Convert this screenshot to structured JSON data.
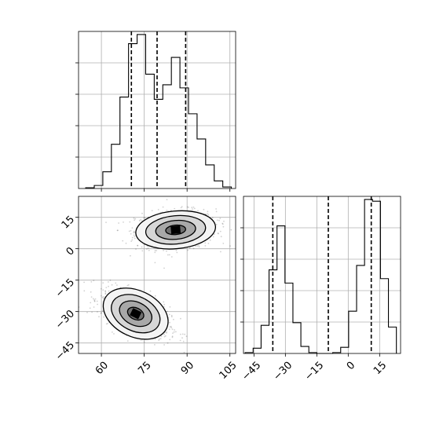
{
  "chart_data": [
    {
      "id": "hist_x",
      "type": "histogram",
      "panel": "top-left",
      "xlim": [
        52,
        107
      ],
      "bin_edges": [
        54.5,
        57.5,
        60.5,
        63.5,
        66.5,
        69.5,
        72.5,
        75.5,
        78.5,
        81.5,
        84.5,
        87.5,
        90.5,
        93.5,
        96.5,
        99.5,
        102.5,
        105.5
      ],
      "counts": [
        1,
        4,
        22,
        58,
        120,
        190,
        202,
        150,
        117,
        136,
        172,
        132,
        98,
        65,
        31,
        10,
        2
      ],
      "quantile_lines": [
        70.5,
        79.5,
        89.5
      ],
      "grid": true
    },
    {
      "id": "hist_y",
      "type": "histogram",
      "panel": "bottom-right",
      "xlim": [
        -50,
        25
      ],
      "bin_edges": [
        -49.2,
        -45.4,
        -41.6,
        -37.8,
        -34.0,
        -30.2,
        -26.4,
        -22.6,
        -18.8,
        -15.0,
        -11.2,
        -7.4,
        -3.6,
        0.2,
        4.0,
        7.8,
        11.6,
        15.4,
        19.2,
        23.0
      ],
      "counts": [
        1,
        6,
        32,
        95,
        145,
        80,
        35,
        8,
        1,
        0,
        0,
        1,
        7,
        48,
        100,
        175,
        173,
        85,
        30
      ],
      "quantile_lines": [
        -36.0,
        -9.5,
        11.0
      ],
      "grid": true,
      "xticks": [
        "−45",
        "−30",
        "−15",
        "0",
        "15"
      ]
    },
    {
      "id": "joint",
      "type": "scatter",
      "panel": "bottom-left",
      "xlim": [
        52,
        107
      ],
      "ylim": [
        -50,
        25
      ],
      "components": [
        {
          "mean": [
            86,
            9
          ],
          "sd": [
            7,
            4.5
          ],
          "rho": 0.1
        },
        {
          "mean": [
            72,
            -31
          ],
          "sd": [
            6,
            5.5
          ],
          "rho": -0.55
        }
      ],
      "contour_levels": [
        0.5,
        1.0,
        1.5,
        2.0
      ],
      "xticks": [
        "60",
        "75",
        "90",
        "105"
      ],
      "yticks": [
        "15",
        "0",
        "−15",
        "−30",
        "−45"
      ],
      "grid": true
    }
  ]
}
